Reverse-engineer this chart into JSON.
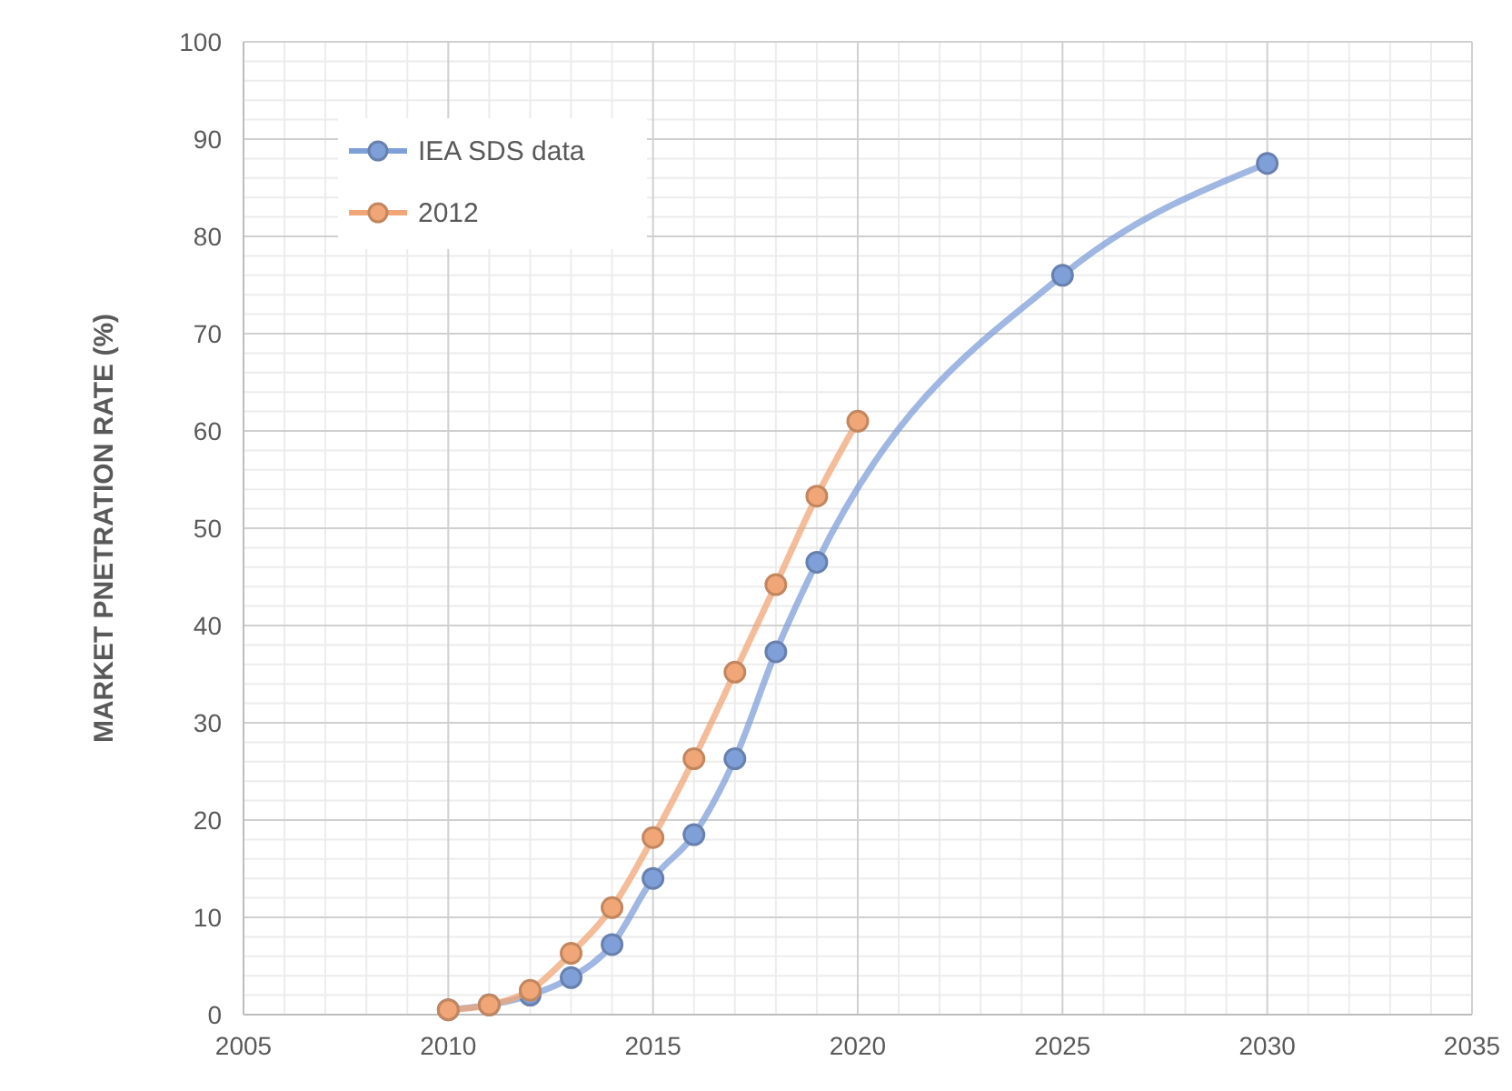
{
  "chart_data": {
    "type": "line",
    "ylabel": "MARKET PNETRATION RATE (%)",
    "xlim": [
      2005,
      2035
    ],
    "xticks": [
      2005,
      2010,
      2015,
      2020,
      2025,
      2030,
      2035
    ],
    "ylim": [
      0,
      100
    ],
    "yticks": [
      0,
      10,
      20,
      30,
      40,
      50,
      60,
      70,
      80,
      90,
      100
    ],
    "grid": true,
    "legend": "top left",
    "marker": "circle",
    "line_style": "solid",
    "series": [
      {
        "name": "IEA SDS data",
        "color": "#7f9fd8",
        "x": [
          2010,
          2011,
          2012,
          2013,
          2014,
          2015,
          2016,
          2017,
          2018,
          2019,
          2025,
          2030
        ],
        "values": [
          0.5,
          1,
          2,
          3.8,
          7.2,
          14,
          18.5,
          26.3,
          37.3,
          46.5,
          76,
          87.5
        ]
      },
      {
        "name": "2012",
        "color": "#f0a676",
        "x": [
          2010,
          2011,
          2012,
          2013,
          2014,
          2015,
          2016,
          2017,
          2018,
          2019,
          2020
        ],
        "values": [
          0.5,
          1,
          2.5,
          6.3,
          11,
          18.2,
          26.3,
          35.2,
          44.2,
          53.3,
          61
        ]
      }
    ]
  }
}
